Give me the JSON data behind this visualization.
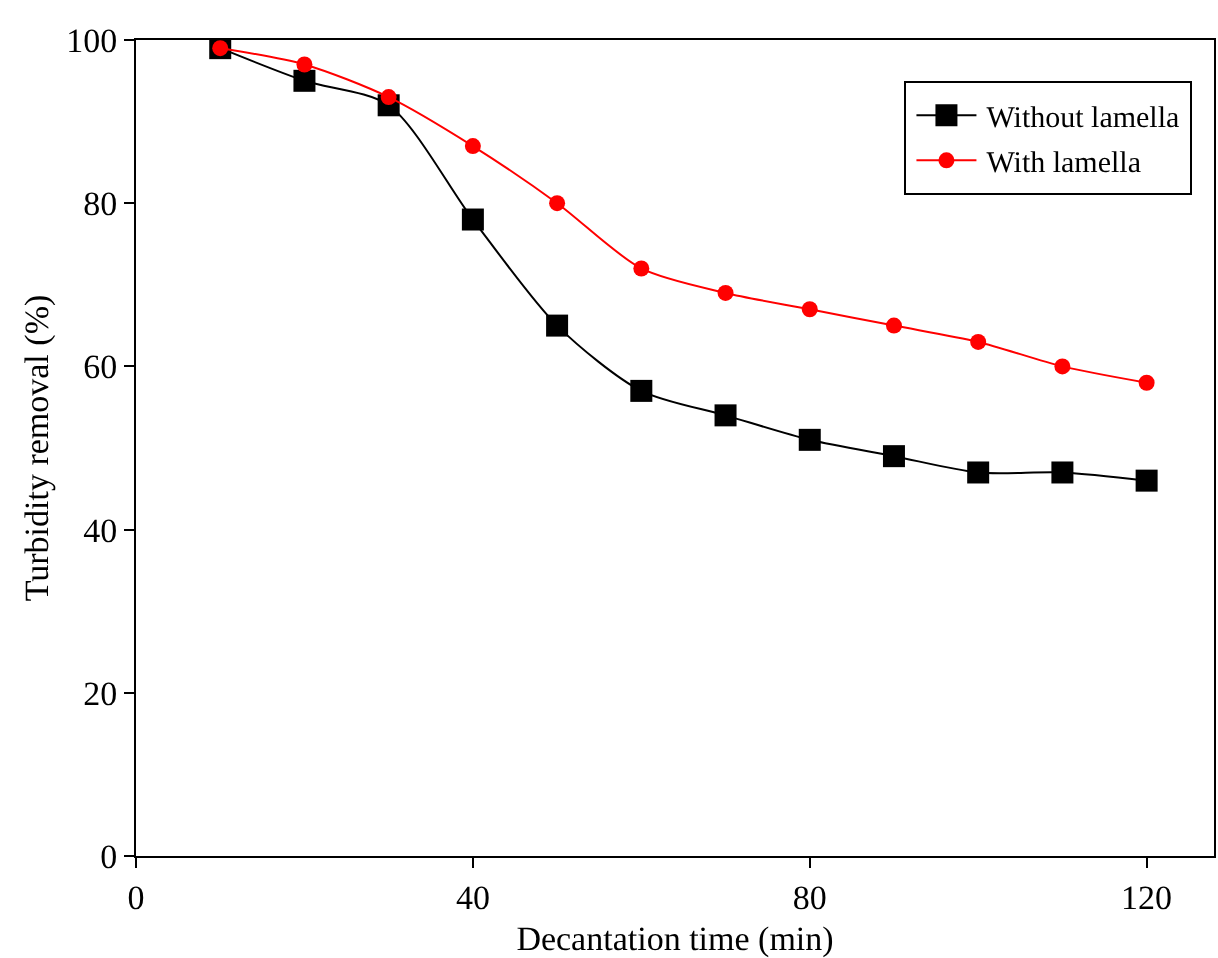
{
  "chart_data": {
    "type": "line",
    "xlabel": "Decantation time (min)",
    "ylabel": "Turbidity removal (%)",
    "x": [
      10,
      20,
      30,
      40,
      50,
      60,
      70,
      80,
      90,
      100,
      110,
      120
    ],
    "series": [
      {
        "name": "Without lamella",
        "color": "#000000",
        "marker": "square",
        "values": [
          99,
          95,
          92,
          78,
          65,
          57,
          54,
          51,
          49,
          47,
          47,
          46
        ]
      },
      {
        "name": "With lamella",
        "color": "#ff0000",
        "marker": "circle",
        "values": [
          99,
          97,
          93,
          87,
          80,
          72,
          69,
          67,
          65,
          63,
          60,
          58
        ]
      }
    ],
    "xlim": [
      0,
      128
    ],
    "xticks": [
      0,
      40,
      80,
      120
    ],
    "ylim": [
      0,
      100
    ],
    "yticks": [
      0,
      20,
      40,
      60,
      80,
      100
    ],
    "grid": false,
    "legend": "top right",
    "line_style": "solid"
  }
}
